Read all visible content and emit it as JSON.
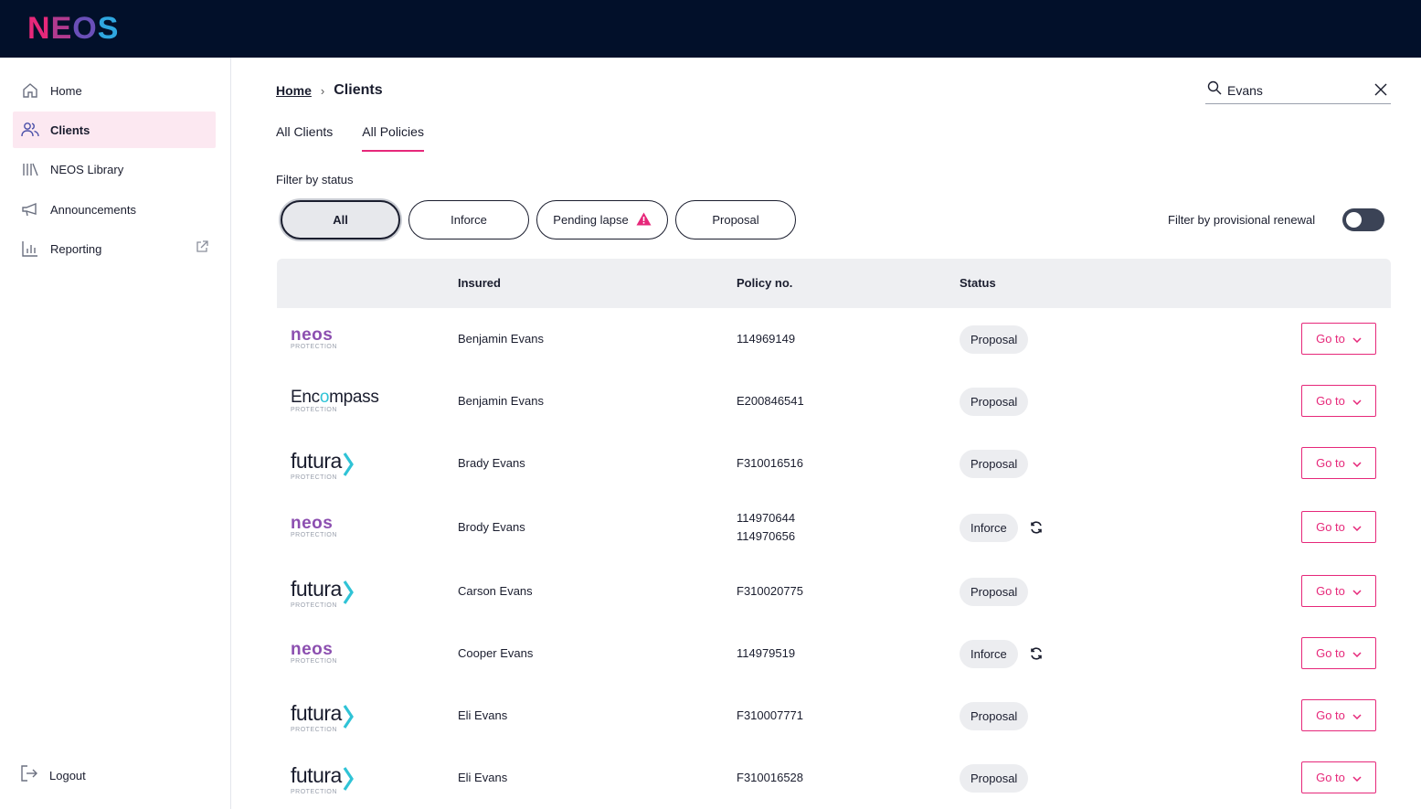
{
  "app": {
    "logo_letters": [
      "N",
      "E",
      "O",
      "S"
    ],
    "logo_colors": [
      "#e6287a",
      "#b23a8f",
      "#6a4fb8",
      "#2fa7e0"
    ]
  },
  "sidebar": {
    "items": [
      {
        "label": "Home",
        "icon": "home-icon",
        "active": false
      },
      {
        "label": "Clients",
        "icon": "users-icon",
        "active": true
      },
      {
        "label": "NEOS Library",
        "icon": "library-icon",
        "active": false
      },
      {
        "label": "Announcements",
        "icon": "megaphone-icon",
        "active": false
      },
      {
        "label": "Reporting",
        "icon": "bar-chart-icon",
        "active": false,
        "external": true
      }
    ],
    "logout_label": "Logout"
  },
  "breadcrumb": {
    "home": "Home",
    "separator": "›",
    "current": "Clients"
  },
  "search": {
    "value": "Evans",
    "placeholder": "Search"
  },
  "tabs": [
    {
      "label": "All Clients",
      "active": false
    },
    {
      "label": "All Policies",
      "active": true
    }
  ],
  "filters": {
    "label": "Filter by status",
    "chips": [
      {
        "label": "All",
        "active": true
      },
      {
        "label": "Inforce",
        "active": false
      },
      {
        "label": "Pending lapse",
        "active": false,
        "warning": true
      },
      {
        "label": "Proposal",
        "active": false
      }
    ],
    "provisional_label": "Filter by provisional renewal",
    "provisional_on": false
  },
  "table": {
    "headers": {
      "insured": "Insured",
      "policy": "Policy no.",
      "status": "Status"
    },
    "action_label": "Go to",
    "rows": [
      {
        "brand": "neos",
        "insured": "Benjamin Evans",
        "policies": [
          "114969149"
        ],
        "status": "Proposal",
        "renewal": false
      },
      {
        "brand": "encompass",
        "insured": "Benjamin Evans",
        "policies": [
          "E200846541"
        ],
        "status": "Proposal",
        "renewal": false
      },
      {
        "brand": "futura",
        "insured": "Brady Evans",
        "policies": [
          "F310016516"
        ],
        "status": "Proposal",
        "renewal": false
      },
      {
        "brand": "neos",
        "insured": "Brody Evans",
        "policies": [
          "114970644",
          "114970656"
        ],
        "status": "Inforce",
        "renewal": true
      },
      {
        "brand": "futura",
        "insured": "Carson Evans",
        "policies": [
          "F310020775"
        ],
        "status": "Proposal",
        "renewal": false
      },
      {
        "brand": "neos",
        "insured": "Cooper Evans",
        "policies": [
          "114979519"
        ],
        "status": "Inforce",
        "renewal": true
      },
      {
        "brand": "futura",
        "insured": "Eli Evans",
        "policies": [
          "F310007771"
        ],
        "status": "Proposal",
        "renewal": false
      },
      {
        "brand": "futura",
        "insured": "Eli Evans",
        "policies": [
          "F310016528"
        ],
        "status": "Proposal",
        "renewal": false
      }
    ]
  },
  "brands": {
    "neos": {
      "name": "neos",
      "sub": "PROTECTION"
    },
    "encompass": {
      "name_a": "Enc",
      "name_o": "o",
      "name_b": "mpass",
      "sub": "PROTECTION"
    },
    "futura": {
      "name": "futura",
      "sub": "PROTECTION"
    }
  },
  "colors": {
    "accent": "#e6287a",
    "topbar": "#02102a",
    "active_nav": "#fce8f1",
    "toggle_off": "#3b4356",
    "neos_purple": "#8c4fb0",
    "futura_cyan": "#2fc3d6"
  }
}
